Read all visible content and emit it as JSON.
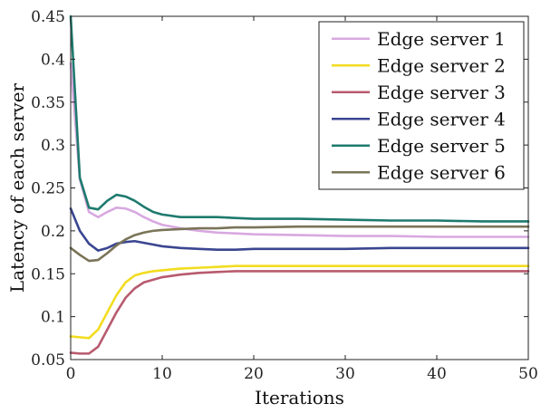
{
  "chart_data": {
    "type": "line",
    "title": "",
    "xlabel": "Iterations",
    "ylabel": "Latency of each server",
    "xlim": [
      0,
      50
    ],
    "ylim": [
      0.05,
      0.45
    ],
    "xticks": [
      0,
      10,
      20,
      30,
      40,
      50
    ],
    "yticks": [
      0.05,
      0.1,
      0.15,
      0.2,
      0.25,
      0.3,
      0.35,
      0.4,
      0.45
    ],
    "xtick_labels": [
      "0",
      "10",
      "20",
      "30",
      "40",
      "50"
    ],
    "ytick_labels": [
      "0.05",
      "0.1",
      "0.15",
      "0.2",
      "0.25",
      "0.3",
      "0.35",
      "0.4",
      "0.45"
    ],
    "grid": false,
    "legend_position": "top-right",
    "x": [
      0,
      1,
      2,
      3,
      4,
      5,
      6,
      7,
      8,
      9,
      10,
      12,
      14,
      16,
      18,
      20,
      25,
      30,
      35,
      40,
      45,
      50
    ],
    "series": [
      {
        "name": "Edge server 1",
        "color": "#d8a8e0",
        "values": [
          0.395,
          0.26,
          0.222,
          0.216,
          0.222,
          0.227,
          0.226,
          0.222,
          0.216,
          0.211,
          0.207,
          0.203,
          0.2,
          0.198,
          0.197,
          0.196,
          0.195,
          0.194,
          0.194,
          0.193,
          0.193,
          0.193
        ]
      },
      {
        "name": "Edge server 2",
        "color": "#f2dc20",
        "values": [
          0.077,
          0.076,
          0.075,
          0.085,
          0.105,
          0.125,
          0.14,
          0.148,
          0.151,
          0.153,
          0.154,
          0.156,
          0.157,
          0.158,
          0.159,
          0.159,
          0.159,
          0.159,
          0.159,
          0.159,
          0.159,
          0.159
        ]
      },
      {
        "name": "Edge server 3",
        "color": "#b85a6e",
        "values": [
          0.058,
          0.057,
          0.057,
          0.065,
          0.085,
          0.105,
          0.122,
          0.133,
          0.14,
          0.143,
          0.146,
          0.149,
          0.151,
          0.152,
          0.153,
          0.153,
          0.153,
          0.153,
          0.153,
          0.153,
          0.153,
          0.153
        ]
      },
      {
        "name": "Edge server 4",
        "color": "#3a4690",
        "values": [
          0.226,
          0.2,
          0.185,
          0.177,
          0.18,
          0.185,
          0.187,
          0.188,
          0.186,
          0.184,
          0.182,
          0.18,
          0.179,
          0.178,
          0.178,
          0.179,
          0.179,
          0.179,
          0.18,
          0.18,
          0.18,
          0.18
        ]
      },
      {
        "name": "Edge server 5",
        "color": "#1e7a6e",
        "values": [
          0.45,
          0.262,
          0.227,
          0.225,
          0.235,
          0.242,
          0.24,
          0.235,
          0.228,
          0.222,
          0.219,
          0.216,
          0.216,
          0.216,
          0.215,
          0.214,
          0.214,
          0.213,
          0.212,
          0.212,
          0.211,
          0.211
        ]
      },
      {
        "name": "Edge server 6",
        "color": "#7a7458",
        "values": [
          0.18,
          0.172,
          0.165,
          0.166,
          0.174,
          0.183,
          0.19,
          0.195,
          0.198,
          0.2,
          0.201,
          0.202,
          0.203,
          0.203,
          0.204,
          0.204,
          0.205,
          0.205,
          0.205,
          0.205,
          0.205,
          0.205
        ]
      }
    ]
  }
}
